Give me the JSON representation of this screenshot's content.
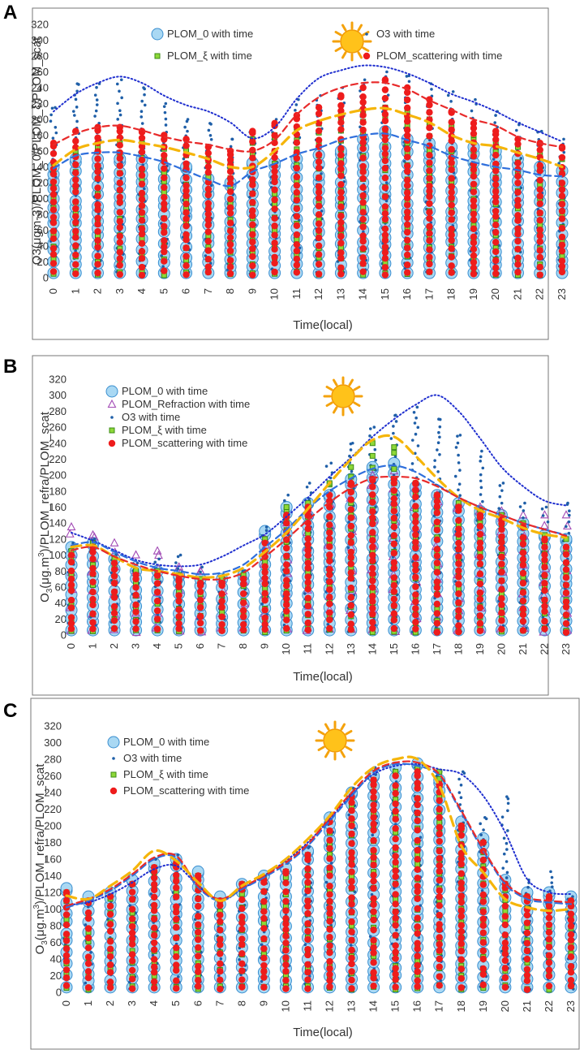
{
  "panels": {
    "A": {
      "letter": "A"
    },
    "B": {
      "letter": "B"
    },
    "C": {
      "letter": "C"
    }
  },
  "colors": {
    "plom0_fill": "#a9d8f3",
    "plom0_stroke": "#3b8fd0",
    "o3": "#1f5fa8",
    "xi_fill": "#8ed838",
    "xi_stroke": "#3b8b14",
    "scat": "#ee1c1c",
    "refr": "#a24ab5",
    "line_o3": "#1f2fcf",
    "line_xi": "#f5b50a",
    "line_0": "#2f6fdc",
    "line_scat": "#e82a2a"
  },
  "chart_data": [
    {
      "id": "A",
      "type": "scatter",
      "title": "",
      "xlabel": "Time(local)",
      "ylabel": "O3(μgm-3)/PLOM_0/PLOM_ξ/PLOM_scat",
      "xlim": [
        0,
        23
      ],
      "ylim": [
        0,
        320
      ],
      "yticks": [
        0,
        20,
        40,
        60,
        80,
        100,
        120,
        140,
        160,
        180,
        200,
        220,
        240,
        260,
        280,
        300,
        320
      ],
      "xticks": [
        "0",
        "1",
        "2",
        "3",
        "4",
        "5",
        "6",
        "7",
        "8",
        "9",
        "10",
        "11",
        "12",
        "13",
        "14",
        "15",
        "16",
        "17",
        "18",
        "19",
        "20",
        "21",
        "22",
        "23"
      ],
      "legend": [
        {
          "key": "plom0",
          "label": "PLOM_0 with time"
        },
        {
          "key": "o3",
          "label": "O3 with time"
        },
        {
          "key": "xi",
          "label": "PLOM_ξ with time"
        },
        {
          "key": "scat",
          "label": "PLOM_scattering with time"
        }
      ],
      "series": [
        {
          "name": "PLOM_0 with time",
          "marker": "circle",
          "max": [
            140,
            150,
            150,
            150,
            150,
            140,
            140,
            125,
            120,
            145,
            145,
            150,
            155,
            160,
            175,
            185,
            175,
            170,
            165,
            165,
            160,
            150,
            140,
            135
          ]
        },
        {
          "name": "PLOM_ξ with time",
          "marker": "square",
          "max": [
            145,
            160,
            165,
            170,
            170,
            165,
            160,
            150,
            145,
            175,
            180,
            190,
            195,
            205,
            210,
            215,
            210,
            200,
            190,
            180,
            170,
            165,
            155,
            150
          ]
        },
        {
          "name": "PLOM_scattering with time",
          "marker": "dot",
          "max": [
            170,
            185,
            190,
            190,
            185,
            180,
            175,
            165,
            160,
            185,
            195,
            205,
            215,
            230,
            240,
            250,
            240,
            225,
            210,
            195,
            185,
            175,
            170,
            165
          ]
        },
        {
          "name": "O3 with time",
          "marker": "smalldot",
          "max": [
            215,
            245,
            245,
            250,
            240,
            220,
            200,
            195,
            175,
            185,
            200,
            225,
            230,
            240,
            250,
            260,
            255,
            245,
            235,
            225,
            210,
            195,
            185,
            175
          ]
        }
      ],
      "trend_lines": [
        {
          "name": "O3 envelope",
          "style": "dotted",
          "color": "line_o3",
          "values": [
            210,
            232,
            246,
            254,
            246,
            230,
            218,
            210,
            196,
            176,
            190,
            226,
            252,
            262,
            268,
            266,
            258,
            246,
            232,
            222,
            210,
            196,
            184,
            172
          ]
        },
        {
          "name": "PLOM_scattering envelope",
          "style": "dashed",
          "color": "line_scat",
          "values": [
            168,
            182,
            190,
            192,
            186,
            178,
            172,
            168,
            162,
            160,
            174,
            206,
            228,
            240,
            246,
            246,
            238,
            224,
            212,
            200,
            192,
            178,
            170,
            165
          ]
        },
        {
          "name": "PLOM_ξ envelope",
          "style": "dashed",
          "color": "line_xi",
          "values": [
            142,
            162,
            170,
            174,
            170,
            165,
            158,
            150,
            140,
            140,
            160,
            186,
            198,
            206,
            212,
            214,
            206,
            196,
            180,
            170,
            166,
            158,
            150,
            140
          ]
        },
        {
          "name": "PLOM_0 envelope",
          "style": "dashed",
          "color": "line_0",
          "values": [
            138,
            154,
            158,
            158,
            153,
            146,
            135,
            124,
            116,
            134,
            144,
            156,
            164,
            174,
            180,
            182,
            174,
            166,
            154,
            146,
            140,
            136,
            130,
            128
          ]
        }
      ]
    },
    {
      "id": "B",
      "type": "scatter",
      "title": "",
      "xlabel": "Time(local)",
      "ylabel": "O3(μg.m3)/PLOM_refra/PLOM_scat",
      "ylabel_parts": {
        "a": "O",
        "sub": "3",
        "b": "(μg.m",
        "sup": "3",
        "c": ")/PLOM_refra/PLOM_scat"
      },
      "xlim": [
        0,
        23
      ],
      "ylim": [
        0,
        320
      ],
      "yticks": [
        0,
        20,
        40,
        60,
        80,
        100,
        120,
        140,
        160,
        180,
        200,
        220,
        240,
        260,
        280,
        300,
        320
      ],
      "xticks": [
        "0",
        "1",
        "2",
        "3",
        "4",
        "5",
        "6",
        "7",
        "8",
        "9",
        "10",
        "11",
        "12",
        "13",
        "14",
        "15",
        "16",
        "17",
        "18",
        "19",
        "20",
        "21",
        "22",
        "23"
      ],
      "legend": [
        {
          "key": "plom0",
          "label": "PLOM_0 with time"
        },
        {
          "key": "refr",
          "label": "PLOM_Refraction with time"
        },
        {
          "key": "o3",
          "label": "O3 with time"
        },
        {
          "key": "xi",
          "label": "PLOM_ξ with time"
        },
        {
          "key": "scat",
          "label": "PLOM_scattering with time"
        }
      ],
      "series": [
        {
          "name": "PLOM_0 with time",
          "marker": "circle",
          "max": [
            110,
            115,
            95,
            80,
            80,
            75,
            70,
            70,
            75,
            130,
            160,
            165,
            175,
            195,
            210,
            215,
            185,
            175,
            165,
            155,
            150,
            140,
            125,
            120
          ]
        },
        {
          "name": "PLOM_Refraction with time",
          "marker": "triangle",
          "max": [
            135,
            125,
            115,
            100,
            105,
            85,
            80,
            70,
            75,
            120,
            140,
            155,
            170,
            190,
            200,
            205,
            185,
            175,
            165,
            160,
            155,
            150,
            150,
            150
          ]
        },
        {
          "name": "O3 with time",
          "marker": "smalldot",
          "max": [
            115,
            120,
            100,
            90,
            95,
            100,
            85,
            75,
            80,
            135,
            175,
            190,
            215,
            240,
            260,
            275,
            285,
            270,
            250,
            230,
            190,
            165,
            160,
            165
          ]
        },
        {
          "name": "PLOM_ξ with time",
          "marker": "square",
          "max": [
            105,
            115,
            95,
            80,
            80,
            75,
            70,
            70,
            75,
            120,
            160,
            165,
            190,
            210,
            240,
            235,
            190,
            175,
            165,
            155,
            150,
            140,
            125,
            120
          ]
        },
        {
          "name": "PLOM_scattering with time",
          "marker": "dot",
          "max": [
            100,
            110,
            90,
            75,
            75,
            70,
            65,
            65,
            70,
            115,
            150,
            160,
            175,
            190,
            195,
            195,
            190,
            175,
            160,
            150,
            145,
            135,
            120,
            110
          ]
        }
      ],
      "trend_lines": [
        {
          "name": "O3 envelope",
          "style": "dotted",
          "color": "line_o3",
          "values": [
            128,
            118,
            106,
            94,
            88,
            86,
            88,
            98,
            112,
            126,
            148,
            172,
            198,
            222,
            248,
            270,
            288,
            300,
            280,
            246,
            210,
            186,
            168,
            162
          ]
        },
        {
          "name": "PLOM_0 envelope",
          "style": "dashed",
          "color": "line_0",
          "values": [
            112,
            116,
            104,
            92,
            84,
            80,
            76,
            78,
            88,
            110,
            132,
            158,
            180,
            196,
            208,
            212,
            204,
            188,
            172,
            160,
            150,
            140,
            132,
            125
          ]
        },
        {
          "name": "PLOM_ξ envelope",
          "style": "dashed",
          "color": "line_xi",
          "values": [
            110,
            112,
            98,
            84,
            80,
            76,
            72,
            74,
            84,
            104,
            128,
            158,
            190,
            220,
            244,
            248,
            224,
            196,
            172,
            156,
            146,
            134,
            126,
            122
          ]
        },
        {
          "name": "PLOM_scattering envelope",
          "style": "dashed",
          "color": "line_scat",
          "values": [
            106,
            110,
            98,
            88,
            80,
            74,
            70,
            70,
            78,
            98,
            120,
            144,
            166,
            184,
            196,
            198,
            196,
            186,
            172,
            160,
            150,
            140,
            132,
            124
          ]
        }
      ]
    },
    {
      "id": "C",
      "type": "scatter",
      "title": "",
      "xlabel": "Time(local)",
      "ylabel": "O3(μg.m3)/PLOM_refra/PLOM_scat",
      "ylabel_parts": {
        "a": "O",
        "sub": "3",
        "b": "(μg.m",
        "sup": "3",
        "c": ")/PLOM_refra/PLOM_scat"
      },
      "xlim": [
        0,
        23
      ],
      "ylim": [
        0,
        320
      ],
      "yticks": [
        0,
        20,
        40,
        60,
        80,
        100,
        120,
        140,
        160,
        180,
        200,
        220,
        240,
        260,
        280,
        300,
        320
      ],
      "xticks": [
        "0",
        "1",
        "2",
        "3",
        "4",
        "5",
        "6",
        "7",
        "8",
        "9",
        "10",
        "11",
        "12",
        "13",
        "14",
        "15",
        "16",
        "17",
        "18",
        "19",
        "20",
        "21",
        "22",
        "23"
      ],
      "legend": [
        {
          "key": "plom0",
          "label": "PLOM_0 with time"
        },
        {
          "key": "o3",
          "label": "O3 with time"
        },
        {
          "key": "xi",
          "label": "PLOM_ξ with time"
        },
        {
          "key": "scat",
          "label": "PLOM_scattering with time"
        }
      ],
      "series": [
        {
          "name": "PLOM_0 with time",
          "marker": "circle",
          "max": [
            125,
            115,
            120,
            135,
            155,
            160,
            145,
            115,
            130,
            140,
            150,
            170,
            210,
            240,
            260,
            270,
            275,
            255,
            205,
            185,
            135,
            120,
            120,
            115
          ]
        },
        {
          "name": "O3 with time",
          "marker": "smalldot",
          "max": [
            110,
            105,
            115,
            130,
            160,
            165,
            130,
            110,
            125,
            140,
            155,
            175,
            215,
            245,
            270,
            275,
            275,
            265,
            265,
            210,
            235,
            135,
            145,
            115
          ]
        },
        {
          "name": "PLOM_ξ with time",
          "marker": "square",
          "max": [
            120,
            110,
            115,
            130,
            150,
            155,
            140,
            110,
            130,
            135,
            145,
            165,
            205,
            235,
            255,
            265,
            270,
            265,
            200,
            180,
            130,
            115,
            115,
            110
          ]
        },
        {
          "name": "PLOM_scattering with time",
          "marker": "dot",
          "max": [
            120,
            110,
            115,
            130,
            150,
            155,
            140,
            110,
            130,
            135,
            145,
            165,
            205,
            235,
            255,
            260,
            265,
            250,
            200,
            180,
            130,
            115,
            115,
            110
          ]
        }
      ],
      "trend_lines": [
        {
          "name": "O3 envelope",
          "style": "dotted",
          "color": "line_o3",
          "values": [
            105,
            108,
            118,
            132,
            148,
            152,
            128,
            110,
            124,
            140,
            158,
            180,
            208,
            238,
            262,
            272,
            274,
            268,
            262,
            236,
            192,
            136,
            120,
            118
          ]
        },
        {
          "name": "PLOM_0 envelope",
          "style": "dashed",
          "color": "line_0",
          "values": [
            102,
            110,
            122,
            140,
            160,
            162,
            126,
            110,
            124,
            138,
            154,
            176,
            206,
            236,
            264,
            274,
            272,
            260,
            216,
            170,
            130,
            112,
            108,
            106
          ]
        },
        {
          "name": "PLOM_scattering envelope",
          "style": "dashed",
          "color": "line_scat",
          "values": [
            104,
            112,
            124,
            142,
            162,
            164,
            128,
            112,
            126,
            140,
            156,
            178,
            210,
            240,
            266,
            276,
            276,
            262,
            218,
            172,
            132,
            114,
            110,
            108
          ]
        },
        {
          "name": "PLOM_ξ envelope",
          "style": "dashed",
          "color": "line_xi",
          "values": [
            116,
            112,
            128,
            146,
            170,
            158,
            132,
            110,
            128,
            142,
            160,
            184,
            212,
            246,
            270,
            280,
            280,
            248,
            176,
            144,
            112,
            102,
            98,
            100
          ]
        }
      ]
    }
  ]
}
